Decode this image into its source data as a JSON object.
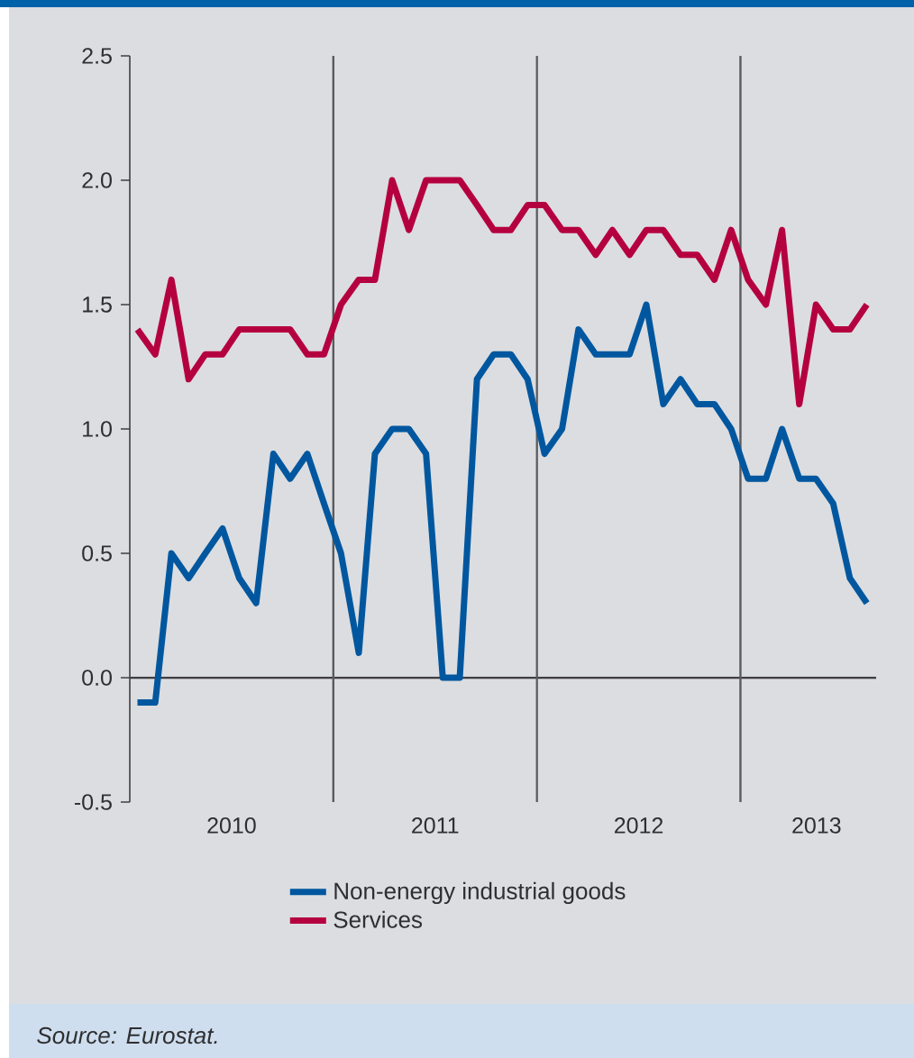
{
  "chart_data": {
    "type": "line",
    "x": [
      "2010-01-15",
      "2010-02-15",
      "2010-03-15",
      "2010-04-15",
      "2010-05-15",
      "2010-06-15",
      "2010-07-15",
      "2010-08-15",
      "2010-09-15",
      "2010-10-15",
      "2010-11-15",
      "2010-12-15",
      "2011-01-15",
      "2011-02-15",
      "2011-03-15",
      "2011-04-15",
      "2011-05-15",
      "2011-06-15",
      "2011-07-15",
      "2011-08-15",
      "2011-09-15",
      "2011-10-15",
      "2011-11-15",
      "2011-12-15",
      "2012-01-15",
      "2012-02-15",
      "2012-03-15",
      "2012-04-15",
      "2012-05-15",
      "2012-06-15",
      "2012-07-15",
      "2012-08-15",
      "2012-09-15",
      "2012-10-15",
      "2012-11-15",
      "2012-12-15",
      "2013-01-15",
      "2013-02-15",
      "2013-03-15",
      "2013-04-15",
      "2013-05-15",
      "2013-06-15",
      "2013-07-15",
      "2013-08-15"
    ],
    "xlim": [
      "2010-01-01",
      "2013-09-01"
    ],
    "xticks": [
      {
        "value": "2010-07-01",
        "label": "2010"
      },
      {
        "value": "2011-07-01",
        "label": "2011"
      },
      {
        "value": "2012-07-01",
        "label": "2012"
      },
      {
        "value": "2013-05-16",
        "label": "2013"
      }
    ],
    "ylim": [
      -0.5,
      2.5
    ],
    "yticks": [
      -0.5,
      {
        "value": 0,
        "label": "0.0"
      },
      0.5,
      {
        "value": 1,
        "label": "1.0"
      },
      1.5,
      {
        "value": 2,
        "label": "2.0"
      },
      2.5
    ],
    "series": [
      {
        "name": "Non-energy industrial goods",
        "color": "#00579f",
        "values": [
          -0.1,
          -0.1,
          0.5,
          0.4,
          0.5,
          0.6,
          0.4,
          0.3,
          0.9,
          0.8,
          0.9,
          0.7,
          0.5,
          0.1,
          0.9,
          1.0,
          1.0,
          0.9,
          0.0,
          0.0,
          1.2,
          1.3,
          1.3,
          1.2,
          0.9,
          1.0,
          1.4,
          1.3,
          1.3,
          1.3,
          1.5,
          1.1,
          1.2,
          1.1,
          1.1,
          1.0,
          0.8,
          0.8,
          1.0,
          0.8,
          0.8,
          0.7,
          0.4,
          0.3
        ]
      },
      {
        "name": "Services",
        "color": "#b5003f",
        "values": [
          1.4,
          1.3,
          1.6,
          1.2,
          1.3,
          1.3,
          1.4,
          1.4,
          1.4,
          1.4,
          1.3,
          1.3,
          1.5,
          1.6,
          1.6,
          2.0,
          1.8,
          2.0,
          2.0,
          2.0,
          1.9,
          1.8,
          1.8,
          1.9,
          1.9,
          1.8,
          1.8,
          1.7,
          1.8,
          1.7,
          1.8,
          1.8,
          1.7,
          1.7,
          1.6,
          1.8,
          1.6,
          1.5,
          1.8,
          1.1,
          1.5,
          1.4,
          1.4,
          1.5
        ]
      }
    ],
    "ref_lines": [
      {
        "axis": "y",
        "value": 0,
        "color": "#3f3f41"
      },
      {
        "axis": "x",
        "value": "2011-01-01",
        "color": "#5a5b5d"
      },
      {
        "axis": "x",
        "value": "2012-01-01",
        "color": "#5a5b5d"
      },
      {
        "axis": "x",
        "value": "2013-01-01",
        "color": "#5a5b5d"
      }
    ],
    "legend": "bottom",
    "annotations": [
      "Source: Eurostat."
    ]
  }
}
